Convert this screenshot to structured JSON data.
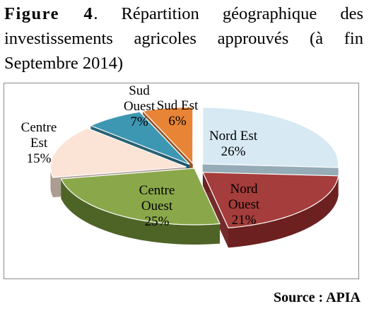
{
  "caption": {
    "figure_label": "Figure 4",
    "text": ". Répartition géographique des investissements agricoles approuvés (à fin Septembre 2014)"
  },
  "source": "Source : APIA",
  "chart_data": {
    "type": "pie",
    "style": "3d-exploded",
    "categories": [
      "Nord Est",
      "Nord Ouest",
      "Centre Ouest",
      "Centre Est",
      "Sud Ouest",
      "Sud Est"
    ],
    "values": [
      26,
      21,
      25,
      15,
      7,
      6
    ],
    "unit": "%",
    "labels": [
      [
        "Nord Est",
        "26%"
      ],
      [
        "Nord",
        "Ouest",
        "21%"
      ],
      [
        "Centre",
        "Ouest",
        "25%"
      ],
      [
        "Centre",
        "Est",
        "15%"
      ],
      [
        "Sud",
        "Ouest",
        "7%"
      ],
      [
        "Sud Est",
        "6%"
      ]
    ],
    "colors": [
      "#d7e9f3",
      "#a43d3b",
      "#8aa84a",
      "#fbe3d5",
      "#3e97b2",
      "#e88436"
    ],
    "side_colors": [
      "#8fa6b2",
      "#6d2020",
      "#4e6427",
      "#a9978c",
      "#1f5a6b",
      "#8f4c18"
    ],
    "legend": "none"
  }
}
